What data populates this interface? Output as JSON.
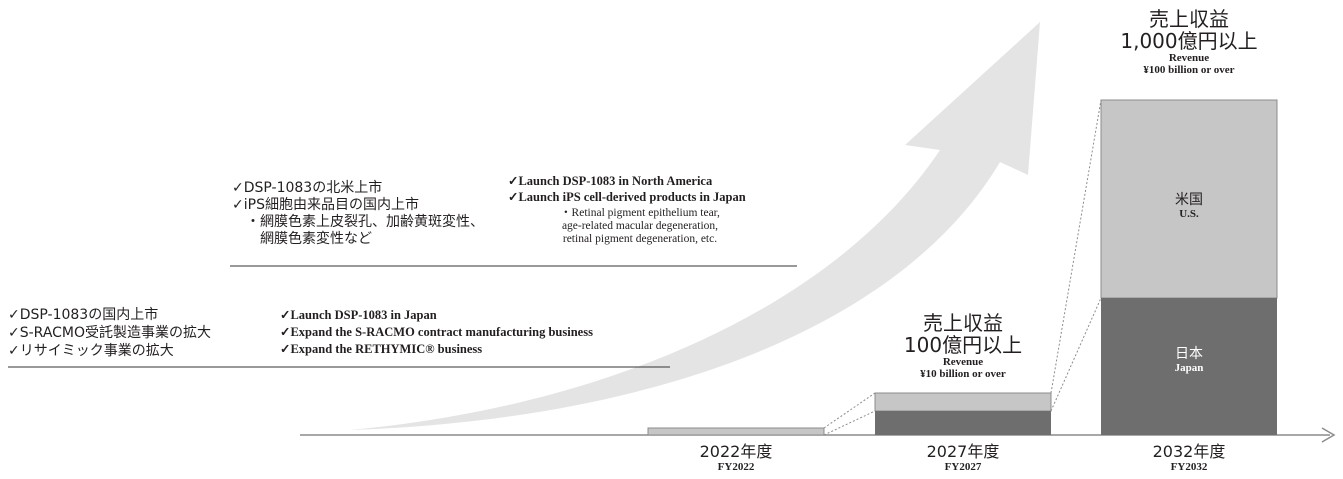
{
  "colors": {
    "arrow": "#e4e4e4",
    "axis": "#8c8c8c",
    "bar_light": "#c6c6c6",
    "bar_dark": "#6e6e6e",
    "bar_border": "#8c8c8c",
    "rule": "#333333"
  },
  "stage_upper": {
    "jp_lines": [
      "✓DSP-1083の北米上市",
      "✓iPS細胞由来品目の国内上市",
      "　・網膜色素上皮裂孔、加齢黄斑変性、",
      "　　網膜色素変性など"
    ],
    "en_lines": [
      "✓Launch DSP-1083 in North America",
      "✓Launch iPS cell-derived products in Japan"
    ],
    "en_sub_lines": [
      "・Retinal pigment epithelium tear,",
      "age-related macular degeneration,",
      "retinal pigment degeneration, etc."
    ]
  },
  "stage_lower": {
    "jp_lines": [
      "✓DSP-1083の国内上市",
      "✓S-RACMO受託製造事業の拡大",
      "✓リサイミック事業の拡大"
    ],
    "en_lines": [
      "✓Launch DSP-1083 in Japan",
      "✓Expand the S-RACMO contract manufacturing business",
      "✓Expand the RETHYMIC® business"
    ]
  },
  "revenue_2027": {
    "jp_line1": "売上収益",
    "jp_line2": "100億円以上",
    "en_line1": "Revenue",
    "en_line2": "¥10 billion or over"
  },
  "revenue_2032": {
    "jp_line1": "売上収益",
    "jp_line2": "1,000億円以上",
    "en_line1": "Revenue",
    "en_line2": "¥100 billion or over"
  },
  "segments": {
    "us": {
      "jp": "米国",
      "en": "U.S."
    },
    "japan": {
      "jp": "日本",
      "en": "Japan"
    }
  },
  "years": [
    {
      "jp": "2022年度",
      "en": "FY2022"
    },
    {
      "jp": "2027年度",
      "en": "FY2027"
    },
    {
      "jp": "2032年度",
      "en": "FY2032"
    }
  ]
}
